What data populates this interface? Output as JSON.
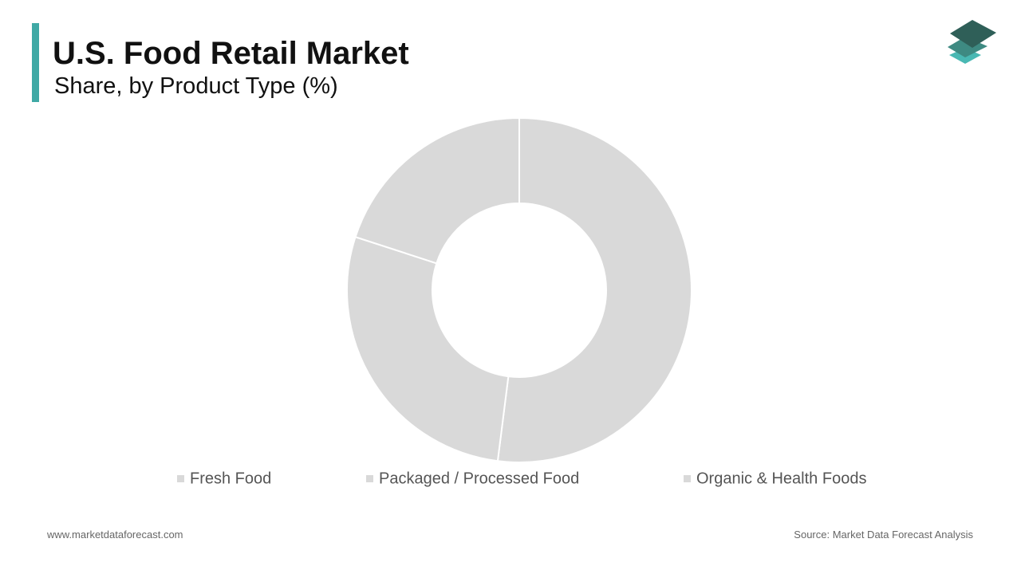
{
  "chart_data": {
    "type": "donut",
    "title": "U.S. Food Retail Market",
    "subtitle": "Share, by Product Type (%)",
    "categories": [
      "Fresh Food",
      "Packaged / Processed Food",
      "Organic & Health Foods"
    ],
    "values": [
      52,
      28,
      20
    ],
    "color": "#d9d9d9",
    "legend": "bottom"
  },
  "footer": {
    "website": "www.marketdataforecast.com",
    "source": "Source: Market Data Forecast Analysis"
  }
}
